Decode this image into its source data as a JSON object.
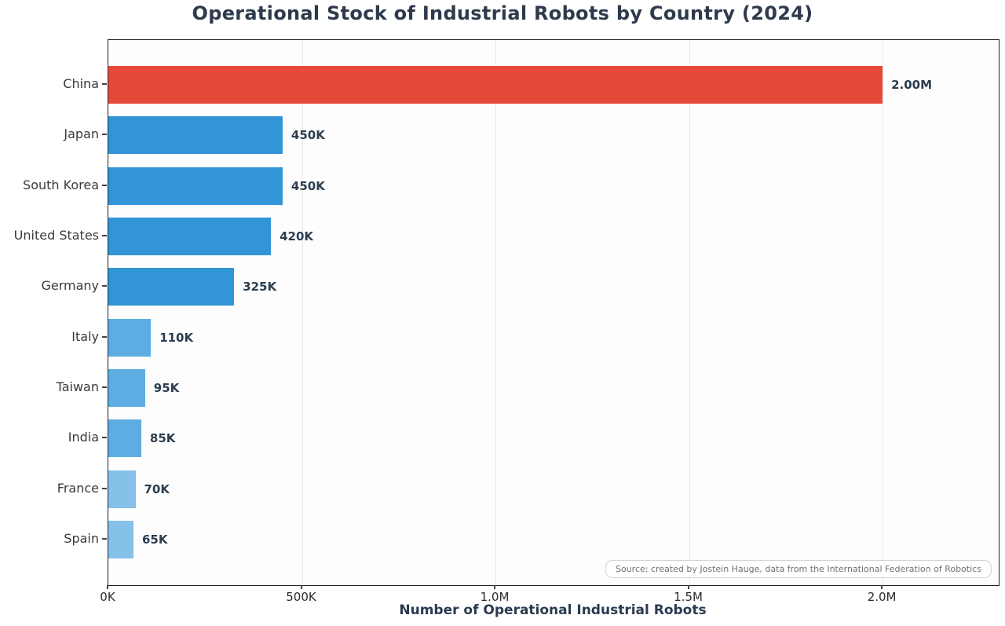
{
  "chart_data": {
    "type": "bar",
    "orientation": "horizontal",
    "title": "Operational Stock of Industrial Robots by Country (2024)",
    "xlabel": "Number of Operational Industrial Robots",
    "ylabel": "",
    "categories": [
      "China",
      "Japan",
      "South Korea",
      "United States",
      "Germany",
      "Italy",
      "Taiwan",
      "India",
      "France",
      "Spain"
    ],
    "values": [
      2000000,
      450000,
      450000,
      420000,
      325000,
      110000,
      95000,
      85000,
      70000,
      65000
    ],
    "value_labels": [
      "2.00M",
      "450K",
      "450K",
      "420K",
      "325K",
      "110K",
      "95K",
      "85K",
      "70K",
      "65K"
    ],
    "bar_colors": [
      "#e4493a",
      "#3295d6",
      "#3295d6",
      "#3295d6",
      "#3295d6",
      "#5dade2",
      "#5dade2",
      "#5dade2",
      "#85c1e9",
      "#85c1e9"
    ],
    "xlim": [
      0,
      2300000
    ],
    "x_ticks": [
      {
        "value": 0,
        "label": "0K"
      },
      {
        "value": 500000,
        "label": "500K"
      },
      {
        "value": 1000000,
        "label": "1.0M"
      },
      {
        "value": 1500000,
        "label": "1.5M"
      },
      {
        "value": 2000000,
        "label": "2.0M"
      }
    ],
    "grid": true,
    "gridline_tick_values": [
      500000,
      1000000,
      1500000,
      2000000
    ],
    "legend": "none",
    "source_note": "Source: created by Jostein Hauge, data from the International Federation of Robotics"
  },
  "colors": {
    "highlight_bar": "#e4493a",
    "primary_bar": "#3295d6",
    "secondary_bar": "#5dade2",
    "tertiary_bar": "#85c1e9",
    "title_text": "#2e3a4c",
    "value_text": "#2c3e50",
    "axis_text": "#3a3a3a",
    "gridline": "#e9e9e9",
    "spine": "#222222"
  }
}
